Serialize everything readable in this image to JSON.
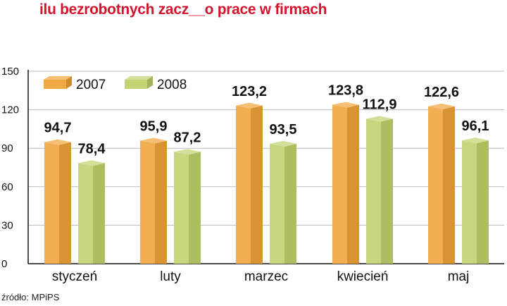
{
  "title": "ilu bezrobotnych zacz__o prace w firmach",
  "source": "źródło: MPiPS",
  "colors": {
    "title": "#d2152c",
    "series_2007": "#f0a43a",
    "series_2008": "#bed36d"
  },
  "chart_data": {
    "type": "bar",
    "categories": [
      "styczeń",
      "luty",
      "marzec",
      "kwiecień",
      "maj"
    ],
    "series": [
      {
        "name": "2007",
        "values": [
          94.7,
          95.9,
          123.2,
          123.8,
          122.6
        ],
        "labels": [
          "94,7",
          "95,9",
          "123,2",
          "123,8",
          "122,6"
        ]
      },
      {
        "name": "2008",
        "values": [
          78.4,
          87.2,
          93.5,
          112.9,
          96.1
        ],
        "labels": [
          "78,4",
          "87,2",
          "93,5",
          "112,9",
          "96,1"
        ]
      }
    ],
    "yticks": [
      0,
      30,
      60,
      90,
      120,
      150
    ],
    "ylim": [
      0,
      150
    ],
    "grid": true,
    "legend": "top-left"
  }
}
